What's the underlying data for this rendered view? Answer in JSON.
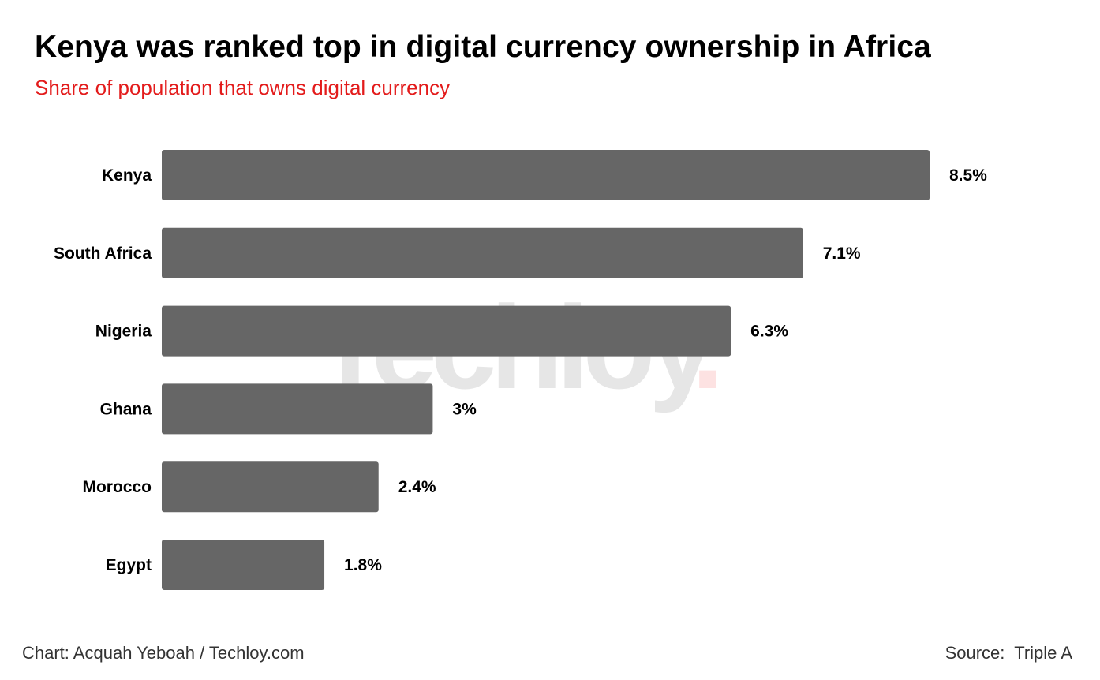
{
  "header": {
    "title": "Kenya was ranked top in digital currency ownership in Africa",
    "subtitle": "Share of population that owns digital currency"
  },
  "watermark": {
    "text": "Techloy",
    "dot": "."
  },
  "chart_data": {
    "type": "bar",
    "orientation": "horizontal",
    "title": "Kenya was ranked top in digital currency ownership in Africa",
    "subtitle": "Share of population that owns digital currency",
    "categories": [
      "Kenya",
      "South Africa",
      "Nigeria",
      "Ghana",
      "Morocco",
      "Egypt"
    ],
    "values": [
      8.5,
      7.1,
      6.3,
      3,
      2.4,
      1.8
    ],
    "value_labels": [
      "8.5%",
      "7.1%",
      "6.3%",
      "3%",
      "2.4%",
      "1.8%"
    ],
    "unit": "%",
    "xlabel": "",
    "ylabel": "",
    "xlim": [
      0,
      8.5
    ],
    "grid": false,
    "bar_color": "#666666"
  },
  "footer": {
    "credit": "Chart: Acquah Yeboah / Techloy.com",
    "source": "Source:  Triple A"
  },
  "colors": {
    "subtitle": "#e31b1b",
    "bar": "#666666",
    "watermark": "#e6e6e6",
    "watermark_dot": "#fde2e2"
  }
}
